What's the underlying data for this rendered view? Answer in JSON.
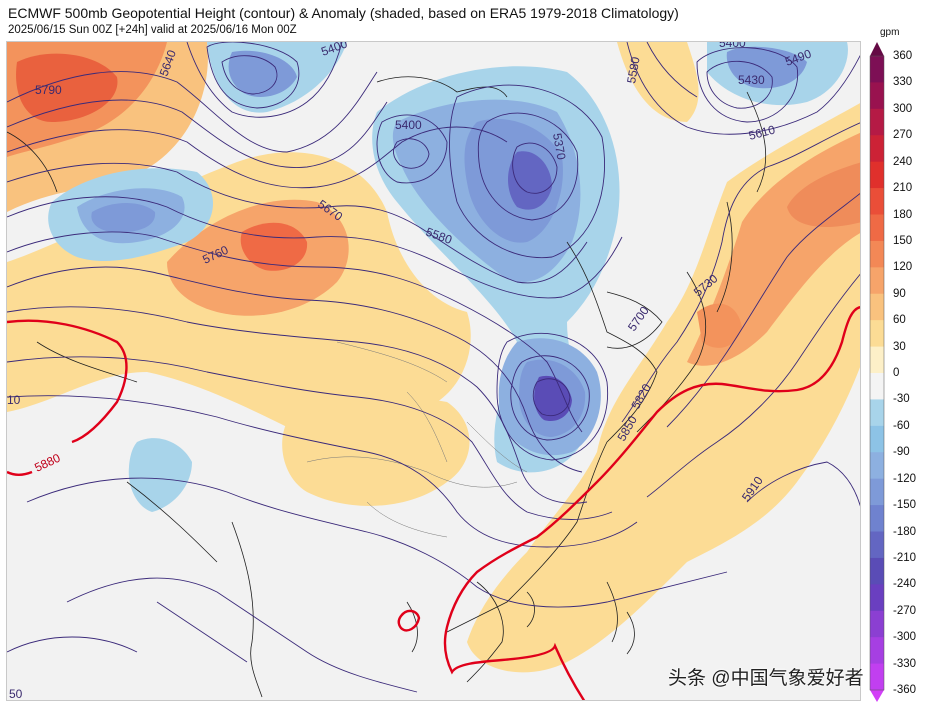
{
  "header": {
    "title": "ECMWF 500mb Geopotential Height (contour) & Anomaly (shaded, based on ERA5 1979-2018 Climatology)",
    "subtitle": "2025/06/15 Sun 00Z [+24h] valid at 2025/06/16 Mon 00Z"
  },
  "colorbar": {
    "unit": "gpm",
    "labels": [
      "360",
      "330",
      "300",
      "270",
      "240",
      "210",
      "180",
      "150",
      "120",
      "90",
      "60",
      "30",
      "0",
      "-30",
      "-60",
      "-90",
      "-120",
      "-150",
      "-180",
      "-210",
      "-240",
      "-270",
      "-300",
      "-330",
      "-360"
    ],
    "colors": [
      "#7d0f55",
      "#99124f",
      "#b51a45",
      "#cc2236",
      "#e0302c",
      "#ea4e38",
      "#ef6a45",
      "#f38856",
      "#f6a46a",
      "#f9c27e",
      "#fcdc95",
      "#fdf0c8",
      "#f4f4f4",
      "#a8d4ea",
      "#8dc3e6",
      "#8db0e0",
      "#7e9ad8",
      "#6f82cf",
      "#6366c2",
      "#5a4cb6",
      "#6a3fc0",
      "#8b3fd2",
      "#a63fe2",
      "#c13ff0"
    ]
  },
  "contour_labels": {
    "l5790": "5790",
    "l5640": "5640",
    "l5400a": "5400",
    "l5400b": "5400",
    "l5400c": "5400",
    "l5430": "5430",
    "l5490": "5490",
    "l5580a": "5580",
    "l5580b": "5580",
    "l5370": "5370",
    "l5670": "5670",
    "l5760": "5760",
    "l5610": "5610",
    "l5730": "5730",
    "l5700": "5700",
    "l5820": "5820",
    "l5850": "5850",
    "l5910": "5910",
    "l5880": "5880",
    "l10": "10",
    "l50": "50"
  },
  "watermark": "头条 @中国气象爱好者"
}
